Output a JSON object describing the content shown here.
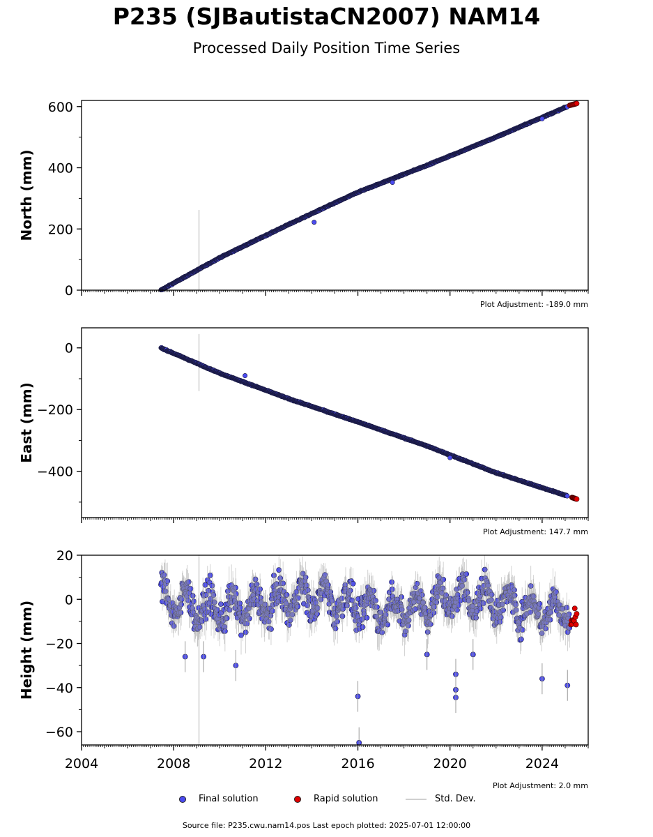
{
  "title": "P235 (SJBautistaCN2007) NAM14",
  "subtitle": "Processed Daily Position Time Series",
  "legend": {
    "final": "Final solution",
    "rapid": "Rapid solution",
    "std": "Std. Dev."
  },
  "footer": "Source file: P235.cwu.nam14.pos  Last epoch plotted: 2025-07-01 12:00:00",
  "colors": {
    "final": "#4b4bf0",
    "rapid": "#e00000",
    "std": "#cfcfcf"
  },
  "chart_data": [
    {
      "type": "scatter",
      "ylabel": "North (mm)",
      "adjustment_label": "Plot Adjustment: -189.0 mm",
      "xlim": [
        2004,
        2026
      ],
      "ylim": [
        0,
        620
      ],
      "yticks": [
        0,
        200,
        400,
        600
      ],
      "ytick_labels": [
        "0",
        "200",
        "400",
        "600"
      ],
      "series": [
        {
          "name": "Final solution",
          "x": [
            2007.45,
            2010,
            2013,
            2016,
            2019,
            2022,
            2025.1
          ],
          "y": [
            0,
            106,
            215,
            320,
            408,
            500,
            600
          ]
        },
        {
          "name": "Rapid solution",
          "x": [
            2025.2,
            2025.5
          ],
          "y": [
            604,
            610
          ]
        }
      ],
      "std_outlier": {
        "x": 2009.1,
        "y_low": 0,
        "y_high": 262
      }
    },
    {
      "type": "scatter",
      "ylabel": "East (mm)",
      "adjustment_label": "Plot Adjustment: 147.7 mm",
      "xlim": [
        2004,
        2026
      ],
      "ylim": [
        -550,
        65
      ],
      "yticks": [
        0,
        -200,
        -400
      ],
      "ytick_labels": [
        "0",
        "−200",
        "−400"
      ],
      "series": [
        {
          "name": "Final solution",
          "x": [
            2007.45,
            2010,
            2013,
            2016,
            2019,
            2022,
            2025.1
          ],
          "y": [
            0,
            -82,
            -165,
            -240,
            -318,
            -405,
            -480
          ]
        },
        {
          "name": "Rapid solution",
          "x": [
            2025.3,
            2025.5
          ],
          "y": [
            -485,
            -490
          ]
        }
      ],
      "std_outlier": {
        "x": 2009.1,
        "y_low": -140,
        "y_high": 45
      }
    },
    {
      "type": "scatter",
      "ylabel": "Height (mm)",
      "adjustment_label": "Plot Adjustment: 2.0 mm",
      "xlim": [
        2004,
        2026
      ],
      "ylim": [
        -66,
        20
      ],
      "yticks": [
        20,
        0,
        -20,
        -40,
        -60
      ],
      "ytick_labels": [
        "20",
        "0",
        "−20",
        "−40",
        "−60"
      ],
      "xticks": [
        2004,
        2008,
        2012,
        2016,
        2020,
        2024
      ],
      "xtick_labels": [
        "2004",
        "2008",
        "2012",
        "2016",
        "2020",
        "2024"
      ],
      "series": [
        {
          "name": "Final solution",
          "x": [
            2007.45,
            2025.2
          ],
          "y": [
            -2,
            -2
          ]
        },
        {
          "name": "Rapid solution",
          "x": [
            2025.25,
            2025.5
          ],
          "y": [
            -3,
            -14
          ]
        }
      ],
      "outliers": [
        {
          "x": 2016.0,
          "y": -44
        },
        {
          "x": 2016.05,
          "y": -65
        },
        {
          "x": 2020.25,
          "y": -34
        },
        {
          "x": 2020.25,
          "y": -41
        },
        {
          "x": 2020.25,
          "y": -44.5
        },
        {
          "x": 2024.0,
          "y": -36
        },
        {
          "x": 2025.1,
          "y": -39
        },
        {
          "x": 2008.5,
          "y": -26
        },
        {
          "x": 2009.3,
          "y": -26
        },
        {
          "x": 2010.7,
          "y": -30
        },
        {
          "x": 2019.0,
          "y": -25
        },
        {
          "x": 2021.0,
          "y": -25
        }
      ],
      "std_outlier": {
        "x": 2009.1,
        "y_low": -66,
        "y_high": 20
      }
    }
  ]
}
